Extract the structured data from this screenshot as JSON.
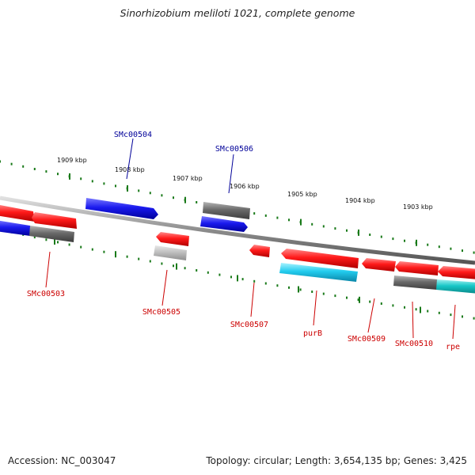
{
  "title": "Sinorhizobium meliloti 1021, complete genome",
  "footer": {
    "accession": "Accession: NC_003047",
    "summary": "Topology: circular; Length: 3,654,135 bp; Genes: 3,425"
  },
  "colors": {
    "backbone": "#8c8c8c",
    "tick": "#1a7a1a",
    "red": "#ff1a1a",
    "blue": "#1a1aee",
    "dark_gray": "#6a6a6a",
    "light_gray": "#c0c0c0",
    "cyan": "#22ccee",
    "teal": "#17c7c7",
    "label_red": "#cc0000",
    "label_blue": "#000099"
  },
  "kbp_ticks": [
    "1909 kbp",
    "1908 kbp",
    "1907 kbp",
    "1906 kbp",
    "1905 kbp",
    "1904 kbp",
    "1903 kbp"
  ],
  "gene_labels": {
    "top": [
      "SMc00504",
      "SMc00506"
    ],
    "bottom": [
      "SMc00503",
      "SMc00505",
      "SMc00507",
      "purB",
      "SMc00509",
      "SMc00510",
      "rpe"
    ]
  }
}
